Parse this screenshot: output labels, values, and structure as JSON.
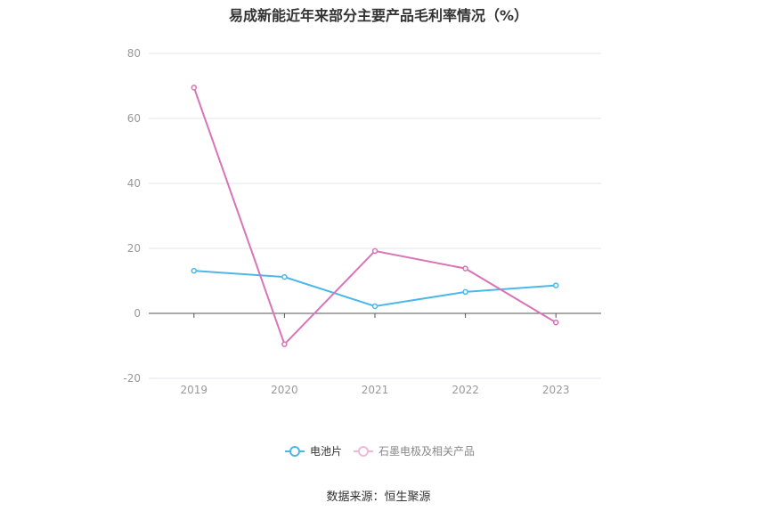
{
  "title": "易成新能近年来部分主要产品毛利率情况（%）",
  "source": "数据来源：恒生聚源",
  "chart_data": {
    "type": "line",
    "categories": [
      "2019",
      "2020",
      "2021",
      "2022",
      "2023"
    ],
    "yticks": [
      "80",
      "60",
      "40",
      "20",
      "0",
      "-20"
    ],
    "ylim": [
      -20,
      80
    ],
    "grid": true,
    "legend_position": "bottom-center",
    "series": [
      {
        "name": "电池片",
        "color": "#4bb8e8",
        "values": [
          13.1,
          11.2,
          2.2,
          6.6,
          8.6
        ]
      },
      {
        "name": "石墨电极及相关产品",
        "color": "#d874b8",
        "values": [
          69.5,
          -9.5,
          19.2,
          13.8,
          -2.8
        ]
      }
    ]
  }
}
